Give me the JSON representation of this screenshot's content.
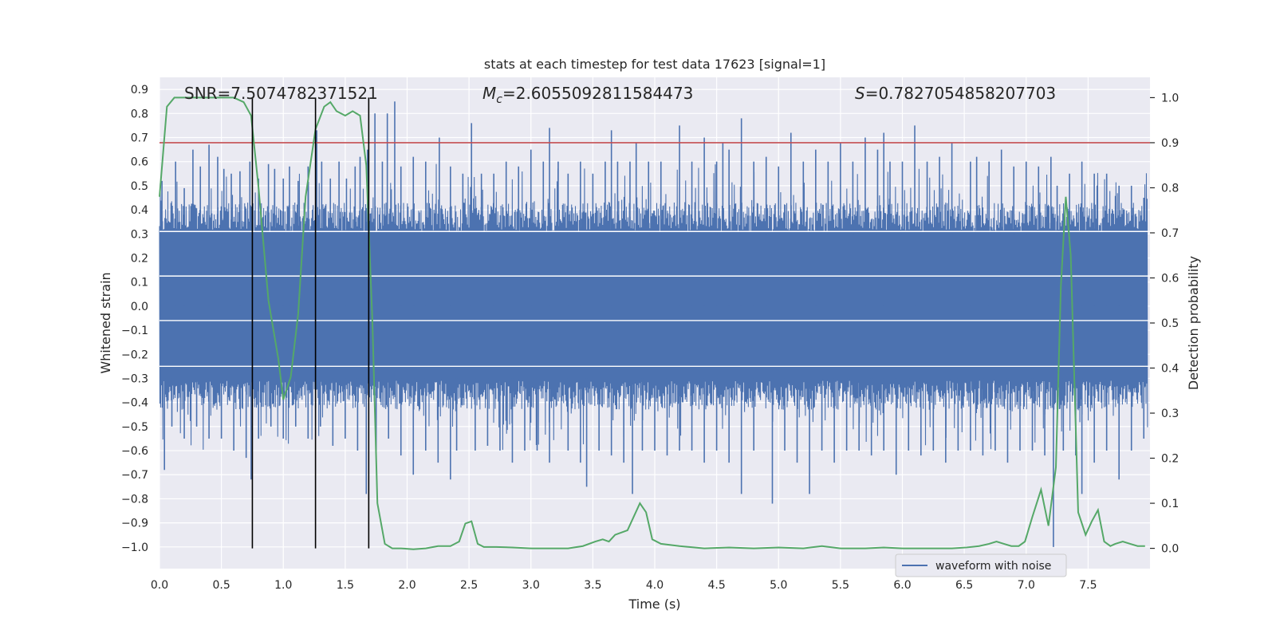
{
  "chart_data": {
    "type": "line",
    "title": "stats at each timestep for test data 17623 [signal=1]",
    "xlabel": "Time (s)",
    "ylabel": "Whitened strain",
    "y2label": "Detection probability",
    "xlim": [
      0.0,
      8.0
    ],
    "ylim": [
      -1.09,
      0.95
    ],
    "y2lim": [
      -0.045,
      1.045
    ],
    "x_ticks": [
      "0.0",
      "0.5",
      "1.0",
      "1.5",
      "2.0",
      "2.5",
      "3.0",
      "3.5",
      "4.0",
      "4.5",
      "5.0",
      "5.5",
      "6.0",
      "6.5",
      "7.0",
      "7.5"
    ],
    "y_ticks": [
      "0.9",
      "0.8",
      "0.7",
      "0.6",
      "0.5",
      "0.4",
      "0.3",
      "0.2",
      "0.1",
      "0.0",
      "−0.1",
      "−0.2",
      "−0.3",
      "−0.4",
      "−0.5",
      "−0.6",
      "−0.7",
      "−0.8",
      "−0.9",
      "−1.0"
    ],
    "y_tick_values": [
      0.9,
      0.8,
      0.7,
      0.6,
      0.5,
      0.4,
      0.3,
      0.2,
      0.1,
      0.0,
      -0.1,
      -0.2,
      -0.3,
      -0.4,
      -0.5,
      -0.6,
      -0.7,
      -0.8,
      -0.9,
      -1.0
    ],
    "y2_ticks": [
      "1.0",
      "0.9",
      "0.8",
      "0.7",
      "0.6",
      "0.5",
      "0.4",
      "0.3",
      "0.2",
      "0.1",
      "0.0"
    ],
    "y2_tick_values": [
      1.0,
      0.9,
      0.8,
      0.7,
      0.6,
      0.5,
      0.4,
      0.3,
      0.2,
      0.1,
      0.0
    ],
    "annotations": {
      "snr": "SNR=7.5074782371521",
      "mc_symbol": "M",
      "mc_sub": "c",
      "mc_value": "=2.6055092811584473",
      "s_symbol": "S",
      "s_value": "=0.7827054858207703"
    },
    "legend": {
      "label": "waveform with noise",
      "loc": "lower-right"
    },
    "series": [
      {
        "name": "waveform with noise",
        "color": "#4c72b0",
        "style": "dense noisy strain",
        "core_band": [
          -0.3,
          0.3
        ],
        "peaks_up": [
          [
            0.02,
            0.52
          ],
          [
            0.13,
            0.6
          ],
          [
            0.2,
            0.49
          ],
          [
            0.27,
            0.65
          ],
          [
            0.33,
            0.58
          ],
          [
            0.4,
            0.67
          ],
          [
            0.47,
            0.62
          ],
          [
            0.52,
            0.57
          ],
          [
            0.58,
            0.55
          ],
          [
            0.65,
            0.56
          ],
          [
            0.73,
            0.6
          ],
          [
            0.8,
            0.53
          ],
          [
            0.88,
            0.59
          ],
          [
            0.93,
            0.57
          ],
          [
            1.0,
            0.53
          ],
          [
            1.05,
            0.58
          ],
          [
            1.12,
            0.52
          ],
          [
            1.2,
            0.58
          ],
          [
            1.27,
            0.73
          ],
          [
            1.31,
            0.6
          ],
          [
            1.38,
            0.53
          ],
          [
            1.45,
            0.6
          ],
          [
            1.51,
            0.53
          ],
          [
            1.58,
            0.58
          ],
          [
            1.62,
            0.62
          ],
          [
            1.68,
            0.65
          ],
          [
            1.74,
            0.8
          ],
          [
            1.8,
            0.6
          ],
          [
            1.84,
            0.8
          ],
          [
            1.9,
            0.85
          ],
          [
            1.95,
            0.58
          ],
          [
            2.05,
            0.62
          ],
          [
            2.15,
            0.6
          ],
          [
            2.26,
            0.7
          ],
          [
            2.35,
            0.58
          ],
          [
            2.45,
            0.55
          ],
          [
            2.52,
            0.76
          ],
          [
            2.6,
            0.55
          ],
          [
            2.7,
            0.55
          ],
          [
            2.8,
            0.6
          ],
          [
            2.9,
            0.58
          ],
          [
            3.0,
            0.65
          ],
          [
            3.1,
            0.6
          ],
          [
            3.15,
            0.74
          ],
          [
            3.22,
            0.6
          ],
          [
            3.3,
            0.55
          ],
          [
            3.4,
            0.6
          ],
          [
            3.5,
            0.55
          ],
          [
            3.6,
            0.6
          ],
          [
            3.65,
            0.73
          ],
          [
            3.7,
            0.6
          ],
          [
            3.8,
            0.6
          ],
          [
            3.85,
            0.68
          ],
          [
            3.95,
            0.6
          ],
          [
            4.05,
            0.6
          ],
          [
            4.2,
            0.75
          ],
          [
            4.3,
            0.6
          ],
          [
            4.4,
            0.7
          ],
          [
            4.5,
            0.6
          ],
          [
            4.55,
            0.68
          ],
          [
            4.6,
            0.65
          ],
          [
            4.7,
            0.78
          ],
          [
            4.8,
            0.6
          ],
          [
            4.9,
            0.62
          ],
          [
            5.0,
            0.58
          ],
          [
            5.1,
            0.72
          ],
          [
            5.2,
            0.6
          ],
          [
            5.3,
            0.65
          ],
          [
            5.4,
            0.6
          ],
          [
            5.5,
            0.68
          ],
          [
            5.6,
            0.6
          ],
          [
            5.7,
            0.7
          ],
          [
            5.8,
            0.65
          ],
          [
            5.85,
            0.72
          ],
          [
            5.9,
            0.6
          ],
          [
            6.0,
            0.6
          ],
          [
            6.1,
            0.75
          ],
          [
            6.2,
            0.6
          ],
          [
            6.3,
            0.62
          ],
          [
            6.4,
            0.68
          ],
          [
            6.55,
            0.6
          ],
          [
            6.6,
            0.62
          ],
          [
            6.7,
            0.6
          ],
          [
            6.8,
            0.65
          ],
          [
            6.9,
            0.58
          ],
          [
            7.0,
            0.6
          ],
          [
            7.1,
            0.58
          ],
          [
            7.2,
            0.62
          ],
          [
            7.25,
            0.5
          ],
          [
            7.35,
            0.55
          ],
          [
            7.45,
            0.6
          ],
          [
            7.55,
            0.55
          ],
          [
            7.65,
            0.55
          ],
          [
            7.75,
            0.5
          ],
          [
            7.85,
            0.5
          ],
          [
            7.95,
            0.45
          ]
        ],
        "peaks_down": [
          [
            0.04,
            -0.68
          ],
          [
            0.1,
            -0.5
          ],
          [
            0.2,
            -0.55
          ],
          [
            0.3,
            -0.5
          ],
          [
            0.4,
            -0.55
          ],
          [
            0.5,
            -0.55
          ],
          [
            0.6,
            -0.6
          ],
          [
            0.7,
            -0.63
          ],
          [
            0.74,
            -0.72
          ],
          [
            0.8,
            -0.55
          ],
          [
            0.9,
            -0.5
          ],
          [
            1.0,
            -0.55
          ],
          [
            1.1,
            -0.5
          ],
          [
            1.2,
            -0.55
          ],
          [
            1.3,
            -0.5
          ],
          [
            1.4,
            -0.58
          ],
          [
            1.5,
            -0.55
          ],
          [
            1.6,
            -0.6
          ],
          [
            1.67,
            -0.78
          ],
          [
            1.75,
            -0.6
          ],
          [
            1.85,
            -0.55
          ],
          [
            1.95,
            -0.62
          ],
          [
            2.05,
            -0.7
          ],
          [
            2.15,
            -0.6
          ],
          [
            2.25,
            -0.65
          ],
          [
            2.35,
            -0.72
          ],
          [
            2.4,
            -0.6
          ],
          [
            2.55,
            -0.6
          ],
          [
            2.65,
            -0.58
          ],
          [
            2.75,
            -0.6
          ],
          [
            2.85,
            -0.65
          ],
          [
            2.95,
            -0.6
          ],
          [
            3.05,
            -0.6
          ],
          [
            3.15,
            -0.65
          ],
          [
            3.3,
            -0.6
          ],
          [
            3.4,
            -0.65
          ],
          [
            3.45,
            -0.75
          ],
          [
            3.55,
            -0.6
          ],
          [
            3.65,
            -0.62
          ],
          [
            3.75,
            -0.65
          ],
          [
            3.82,
            -0.78
          ],
          [
            3.9,
            -0.6
          ],
          [
            4.0,
            -0.6
          ],
          [
            4.1,
            -0.62
          ],
          [
            4.2,
            -0.6
          ],
          [
            4.3,
            -0.6
          ],
          [
            4.4,
            -0.65
          ],
          [
            4.5,
            -0.6
          ],
          [
            4.6,
            -0.65
          ],
          [
            4.7,
            -0.78
          ],
          [
            4.8,
            -0.6
          ],
          [
            4.95,
            -0.82
          ],
          [
            5.05,
            -0.6
          ],
          [
            5.15,
            -0.65
          ],
          [
            5.25,
            -0.78
          ],
          [
            5.35,
            -0.6
          ],
          [
            5.45,
            -0.65
          ],
          [
            5.55,
            -0.6
          ],
          [
            5.65,
            -0.6
          ],
          [
            5.75,
            -0.62
          ],
          [
            5.85,
            -0.6
          ],
          [
            5.95,
            -0.7
          ],
          [
            6.05,
            -0.6
          ],
          [
            6.15,
            -0.62
          ],
          [
            6.25,
            -0.6
          ],
          [
            6.35,
            -0.65
          ],
          [
            6.45,
            -0.6
          ],
          [
            6.55,
            -0.6
          ],
          [
            6.65,
            -0.62
          ],
          [
            6.75,
            -0.6
          ],
          [
            6.85,
            -0.65
          ],
          [
            6.95,
            -0.6
          ],
          [
            7.05,
            -0.6
          ],
          [
            7.15,
            -0.62
          ],
          [
            7.22,
            -1.0
          ],
          [
            7.3,
            -0.6
          ],
          [
            7.4,
            -0.62
          ],
          [
            7.45,
            -0.78
          ],
          [
            7.55,
            -0.65
          ],
          [
            7.65,
            -0.6
          ],
          [
            7.75,
            -0.72
          ],
          [
            7.85,
            -0.6
          ],
          [
            7.95,
            -0.55
          ]
        ]
      },
      {
        "name": "detection probability",
        "color": "#55a868",
        "axis": "right",
        "x": [
          0.0,
          0.06,
          0.12,
          0.2,
          0.3,
          0.4,
          0.5,
          0.6,
          0.68,
          0.74,
          0.8,
          0.88,
          0.96,
          1.0,
          1.06,
          1.12,
          1.18,
          1.26,
          1.33,
          1.38,
          1.43,
          1.5,
          1.56,
          1.62,
          1.67,
          1.72,
          1.76,
          1.82,
          1.88,
          1.95,
          2.05,
          2.15,
          2.25,
          2.35,
          2.42,
          2.47,
          2.52,
          2.57,
          2.62,
          2.72,
          2.85,
          3.0,
          3.15,
          3.3,
          3.42,
          3.52,
          3.58,
          3.63,
          3.68,
          3.78,
          3.88,
          3.93,
          3.98,
          4.05,
          4.2,
          4.4,
          4.6,
          4.8,
          5.0,
          5.2,
          5.35,
          5.5,
          5.7,
          5.85,
          6.0,
          6.2,
          6.4,
          6.52,
          6.62,
          6.7,
          6.76,
          6.82,
          6.88,
          6.94,
          6.99,
          7.05,
          7.12,
          7.18,
          7.24,
          7.28,
          7.32,
          7.36,
          7.42,
          7.48,
          7.53,
          7.58,
          7.63,
          7.68,
          7.72,
          7.78,
          7.84,
          7.9,
          7.96
        ],
        "values": [
          0.78,
          0.98,
          1.0,
          1.0,
          1.0,
          1.0,
          1.0,
          1.0,
          0.99,
          0.96,
          0.8,
          0.55,
          0.42,
          0.33,
          0.38,
          0.52,
          0.78,
          0.93,
          0.98,
          0.99,
          0.97,
          0.96,
          0.97,
          0.96,
          0.85,
          0.5,
          0.1,
          0.01,
          0.0,
          0.0,
          -0.002,
          0.0,
          0.005,
          0.005,
          0.015,
          0.055,
          0.06,
          0.01,
          0.003,
          0.003,
          0.002,
          0.0,
          0.0,
          0.0,
          0.005,
          0.015,
          0.02,
          0.015,
          0.03,
          0.04,
          0.1,
          0.08,
          0.02,
          0.01,
          0.005,
          0.0,
          0.002,
          0.0,
          0.002,
          0.0,
          0.005,
          0.0,
          0.0,
          0.002,
          0.0,
          0.0,
          0.0,
          0.002,
          0.005,
          0.01,
          0.015,
          0.01,
          0.005,
          0.005,
          0.015,
          0.07,
          0.13,
          0.05,
          0.18,
          0.58,
          0.78,
          0.65,
          0.08,
          0.03,
          0.06,
          0.085,
          0.015,
          0.005,
          0.01,
          0.015,
          0.01,
          0.005,
          0.005
        ]
      }
    ],
    "threshold_line": {
      "value": 0.9,
      "axis": "right",
      "color": "#c44e52"
    },
    "vertical_markers": {
      "x": [
        0.75,
        1.26,
        1.69
      ],
      "color": "#000000"
    },
    "white_reference_lines": [
      0.31,
      0.125,
      -0.06,
      -0.25
    ]
  }
}
